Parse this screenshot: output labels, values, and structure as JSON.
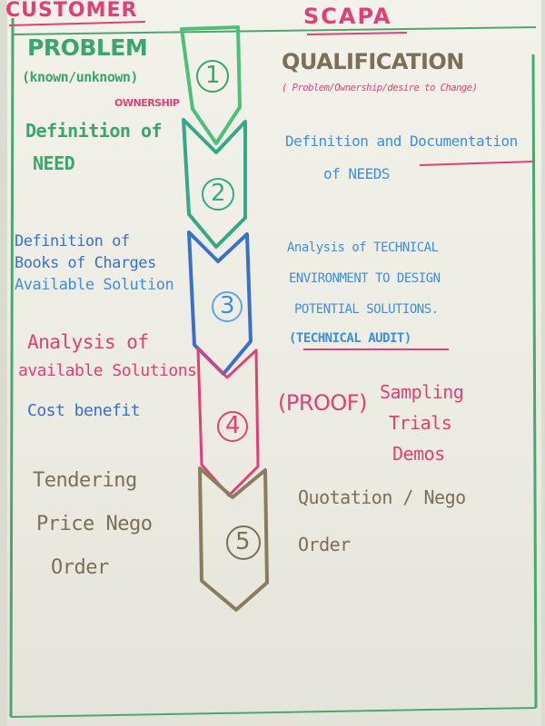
{
  "headers": {
    "customer": "CUSTOMER",
    "scapa": "SCAPA"
  },
  "steps": [
    {
      "number": "1",
      "customer": [
        "PROBLEM",
        "(known/unknown)",
        "OWNERSHIP"
      ],
      "scapa": [
        "QUALIFICATION",
        "( Problem/Ownership/desire to Change)"
      ]
    },
    {
      "number": "2",
      "customer": [
        "Definition of",
        "NEED"
      ],
      "scapa": [
        "Definition and Documentation",
        "of NEEDS"
      ]
    },
    {
      "number": "3",
      "customer": [
        "Definition of",
        "Books of Charges",
        "Available Solution"
      ],
      "scapa": [
        "Analysis of TECHNICAL",
        "ENVIRONMENT TO DESIGN",
        "POTENTIAL SOLUTIONS.",
        "(TECHNICAL AUDIT)"
      ]
    },
    {
      "number": "4",
      "customer": [
        "Analysis of",
        "available Solutions",
        "Cost benefit"
      ],
      "scapa": [
        "(PROOF)",
        "Sampling",
        "Trials",
        "Demos"
      ]
    },
    {
      "number": "5",
      "customer": [
        "Tendering",
        "Price Nego",
        "Order"
      ],
      "scapa": [
        "Quotation / Nego",
        "Order"
      ]
    }
  ],
  "colors": {
    "step1": "#3aa56c",
    "step2": "#34a98a",
    "step3": "#3a6fd0",
    "step4": "#e23f78",
    "step5": "#7d6f55",
    "border": "#3aa56c",
    "underline": "#e23f78"
  }
}
